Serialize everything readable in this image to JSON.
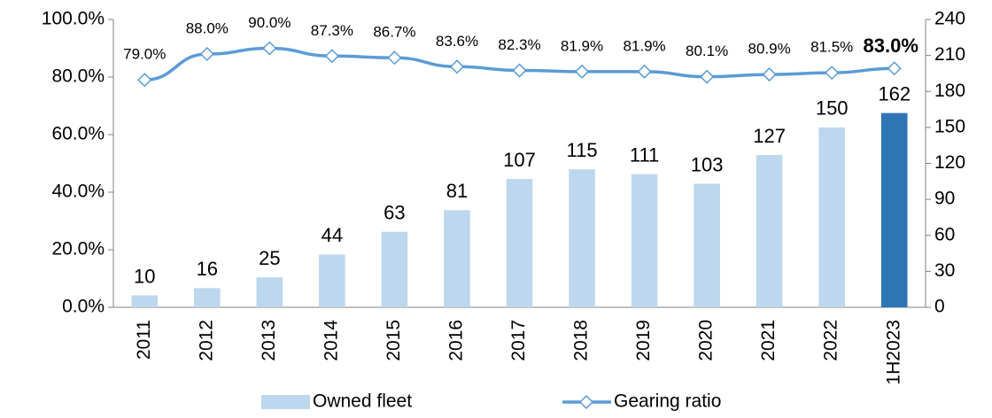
{
  "chart_data": {
    "type": "bar_line",
    "categories": [
      "2011",
      "2012",
      "2013",
      "2014",
      "2015",
      "2016",
      "2017",
      "2018",
      "2019",
      "2020",
      "2021",
      "2022",
      "1H2023"
    ],
    "series": [
      {
        "name": "Owned fleet",
        "type": "bar",
        "axis": "y2",
        "color": "#bdd7ee",
        "colors": [
          "#bdd7ee",
          "#bdd7ee",
          "#bdd7ee",
          "#bdd7ee",
          "#bdd7ee",
          "#bdd7ee",
          "#bdd7ee",
          "#bdd7ee",
          "#bdd7ee",
          "#bdd7ee",
          "#bdd7ee",
          "#bdd7ee",
          "#2e75b6"
        ],
        "values": [
          10,
          16,
          25,
          44,
          63,
          81,
          107,
          115,
          111,
          103,
          127,
          150,
          162
        ]
      },
      {
        "name": "Gearing ratio",
        "type": "line",
        "axis": "y",
        "color": "#5b9bd5",
        "values": [
          79.0,
          88.0,
          90.0,
          87.3,
          86.7,
          83.6,
          82.3,
          81.9,
          81.9,
          80.1,
          80.9,
          81.5,
          83.0
        ],
        "value_labels": [
          "79.0%",
          "88.0%",
          "90.0%",
          "87.3%",
          "86.7%",
          "83.6%",
          "82.3%",
          "81.9%",
          "81.9%",
          "80.1%",
          "80.9%",
          "81.5%",
          "83.0%"
        ]
      }
    ],
    "ylim": [
      0,
      100
    ],
    "yticks": [
      {
        "value": 0,
        "label": "0.0%"
      },
      {
        "value": 20,
        "label": "20.0%"
      },
      {
        "value": 40,
        "label": "40.0%"
      },
      {
        "value": 60,
        "label": "60.0%"
      },
      {
        "value": 80,
        "label": "80.0%"
      },
      {
        "value": 100,
        "label": "100.0%"
      }
    ],
    "y2lim": [
      0,
      240
    ],
    "y2ticks": [
      0,
      30,
      60,
      90,
      120,
      150,
      180,
      210,
      240
    ],
    "legend": "bottom"
  }
}
